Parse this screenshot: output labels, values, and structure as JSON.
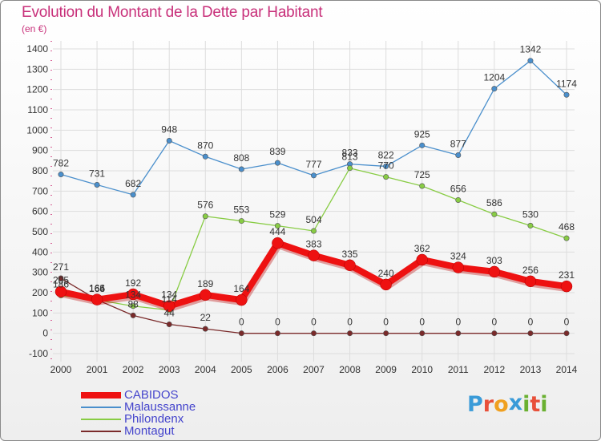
{
  "header": {
    "title": "Evolution du Montant de la Dette par Habitant",
    "subtitle": "(en €)"
  },
  "logo": {
    "text": "Proxiti",
    "letter_colors": [
      "#3a9bd8",
      "#e8503a",
      "#f0a020",
      "#3a9bd8",
      "#6ab030",
      "#e8503a",
      "#6ab030"
    ]
  },
  "chart_data": {
    "type": "line",
    "x": [
      "2000",
      "2001",
      "2002",
      "2003",
      "2004",
      "2005",
      "2006",
      "2007",
      "2008",
      "2009",
      "2010",
      "2011",
      "2012",
      "2013",
      "2014"
    ],
    "ylim": [
      -100,
      1400
    ],
    "yticks": [
      -100,
      0,
      100,
      200,
      300,
      400,
      500,
      600,
      700,
      800,
      900,
      1000,
      1100,
      1200,
      1300,
      1400
    ],
    "grid": true,
    "legend_position": "bottom-left",
    "series": [
      {
        "name": "CABIDOS",
        "color": "#ee1111",
        "values": [
          205,
          166,
          192,
          134,
          189,
          164,
          444,
          383,
          335,
          240,
          362,
          324,
          303,
          256,
          231
        ]
      },
      {
        "name": "Malaussanne",
        "color": "#4a8fcc",
        "values": [
          782,
          731,
          682,
          948,
          870,
          808,
          839,
          777,
          833,
          822,
          925,
          877,
          1204,
          1342,
          1174
        ]
      },
      {
        "name": "Philondenx",
        "color": "#88cc44",
        "values": [
          186,
          164,
          134,
          114,
          576,
          553,
          529,
          504,
          813,
          770,
          725,
          656,
          586,
          530,
          468
        ]
      },
      {
        "name": "Montagut",
        "color": "#7a2a2a",
        "values": [
          271,
          165,
          88,
          44,
          22,
          0,
          0,
          0,
          0,
          0,
          0,
          0,
          0,
          0,
          0
        ]
      }
    ]
  }
}
